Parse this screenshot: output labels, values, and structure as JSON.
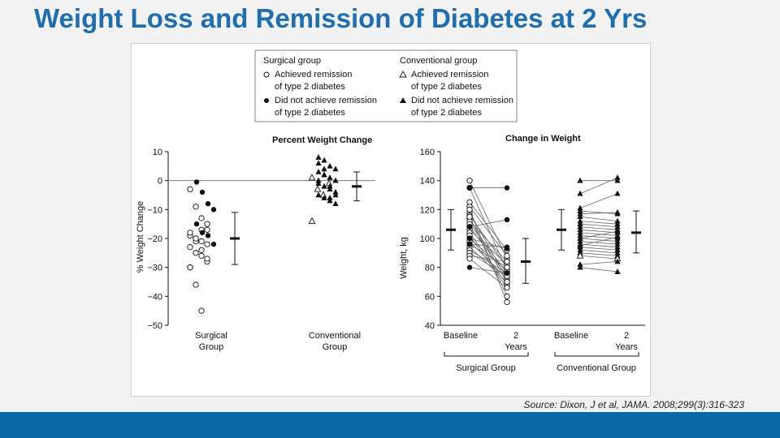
{
  "slide": {
    "title": "Weight Loss and Remission of Diabetes at 2 Yrs",
    "source": "Source: Dixon, J et al, JAMA. 2008;299(3):316-323"
  },
  "legend": {
    "surgical_header": "Surgical group",
    "conventional_header": "Conventional group",
    "achieved_1": "Achieved remission",
    "achieved_2": "of type 2 diabetes",
    "notachieved_1": "Did not achieve remission",
    "notachieved_2": "of type 2 diabetes"
  },
  "chart_data": [
    {
      "type": "scatter",
      "title": "Percent Weight Change",
      "ylabel": "% Weight Change",
      "ylim": [
        -50,
        10
      ],
      "yticks": [
        10,
        0,
        -10,
        -20,
        -30,
        -40,
        -50
      ],
      "reference_line_y": 0,
      "categories": [
        "Surgical\nGroup",
        "Conventional\nGroup"
      ],
      "category_labels": [
        [
          "Surgical",
          "Group"
        ],
        [
          "Conventional",
          "Group"
        ]
      ],
      "series": [
        {
          "name": "Surgical group — achieved remission",
          "group": "Surgical",
          "marker": "open-circle",
          "values": [
            -3,
            -9,
            -13,
            -17,
            -19,
            -20,
            -21,
            -22,
            -23,
            -25,
            -26,
            -28,
            -30,
            -36,
            -45,
            -15,
            -18,
            -21,
            -24,
            -27,
            -30,
            -20,
            -17
          ]
        },
        {
          "name": "Surgical group — did not achieve remission",
          "group": "Surgical",
          "marker": "filled-circle",
          "values": [
            -0.5,
            -4,
            -8,
            -10,
            -15,
            -18,
            -19,
            -22
          ]
        },
        {
          "name": "Conventional group — achieved remission",
          "group": "Conventional",
          "marker": "open-triangle",
          "values": [
            -14,
            -3,
            -5,
            -1,
            1
          ]
        },
        {
          "name": "Conventional group — did not achieve remission",
          "group": "Conventional",
          "marker": "filled-triangle",
          "values": [
            8,
            7,
            5,
            4,
            3,
            2,
            1,
            0,
            -1,
            -2,
            -3,
            -4,
            -5,
            -6,
            -7,
            -8,
            6,
            2,
            -2,
            -5,
            0,
            4,
            -6
          ]
        }
      ],
      "summary": [
        {
          "group": "Surgical",
          "mean": -20,
          "low": -29,
          "high": -11
        },
        {
          "group": "Conventional",
          "mean": -2,
          "low": -7,
          "high": 3
        }
      ]
    },
    {
      "type": "line",
      "title": "Change in Weight",
      "ylabel": "Weight, kg",
      "ylim": [
        40,
        160
      ],
      "yticks": [
        160,
        140,
        120,
        100,
        80,
        60,
        40
      ],
      "x_labels": [
        [
          "Baseline"
        ],
        [
          "2",
          "Years"
        ],
        [
          "Baseline"
        ],
        [
          "2",
          "Years"
        ]
      ],
      "group_labels": [
        "Surgical Group",
        "Conventional Group"
      ],
      "surgical_pairs": [
        [
          140,
          86
        ],
        [
          135,
          78
        ],
        [
          125,
          92
        ],
        [
          122,
          88
        ],
        [
          118,
          72
        ],
        [
          116,
          80
        ],
        [
          114,
          70
        ],
        [
          112,
          84
        ],
        [
          110,
          76
        ],
        [
          108,
          74
        ],
        [
          106,
          82
        ],
        [
          104,
          68
        ],
        [
          102,
          66
        ],
        [
          100,
          78
        ],
        [
          98,
          72
        ],
        [
          96,
          80
        ],
        [
          94,
          70
        ],
        [
          92,
          76
        ],
        [
          90,
          74
        ],
        [
          88,
          84
        ],
        [
          86,
          66
        ],
        [
          80,
          76
        ],
        [
          120,
          56
        ],
        [
          115,
          60
        ],
        [
          135,
          135
        ],
        [
          108,
          113
        ],
        [
          100,
          93
        ],
        [
          96,
          94
        ]
      ],
      "surgical_pairs_filled": [
        false,
        false,
        false,
        false,
        false,
        false,
        false,
        false,
        false,
        false,
        false,
        false,
        false,
        false,
        false,
        false,
        false,
        false,
        false,
        false,
        false,
        true,
        false,
        false,
        true,
        true,
        true,
        true
      ],
      "conventional_pairs": [
        [
          140,
          140
        ],
        [
          131,
          142
        ],
        [
          121,
          131
        ],
        [
          119,
          117
        ],
        [
          117,
          118
        ],
        [
          115,
          112
        ],
        [
          112,
          110
        ],
        [
          110,
          108
        ],
        [
          108,
          106
        ],
        [
          106,
          104
        ],
        [
          104,
          102
        ],
        [
          102,
          100
        ],
        [
          100,
          98
        ],
        [
          98,
          96
        ],
        [
          96,
          94
        ],
        [
          94,
          92
        ],
        [
          92,
          90
        ],
        [
          90,
          88
        ],
        [
          88,
          86
        ],
        [
          82,
          84
        ],
        [
          80,
          77
        ],
        [
          100,
          105
        ],
        [
          95,
          101
        ]
      ],
      "conventional_pairs_filled": [
        true,
        true,
        true,
        true,
        true,
        true,
        true,
        true,
        true,
        true,
        true,
        true,
        true,
        true,
        true,
        true,
        true,
        true,
        false,
        true,
        true,
        true,
        true
      ],
      "summary": [
        {
          "position": "Surgical Baseline",
          "mean": 106,
          "low": 92,
          "high": 120
        },
        {
          "position": "Surgical 2 Years",
          "mean": 84,
          "low": 69,
          "high": 100
        },
        {
          "position": "Conventional Baseline",
          "mean": 106,
          "low": 92,
          "high": 120
        },
        {
          "position": "Conventional 2 Years",
          "mean": 104,
          "low": 90,
          "high": 119
        }
      ]
    }
  ]
}
